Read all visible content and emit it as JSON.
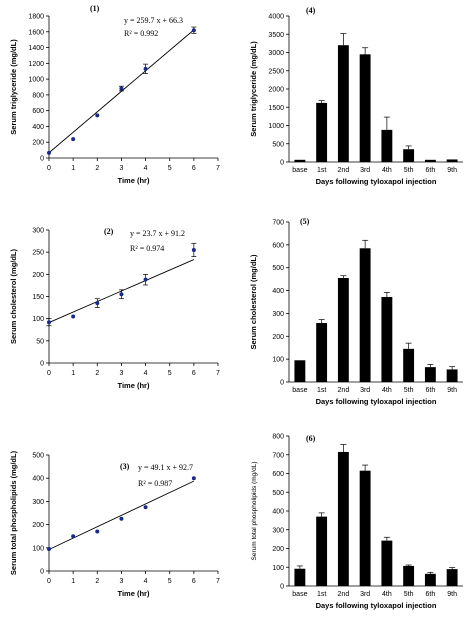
{
  "chart_data": [
    {
      "panel": "(1)",
      "type": "scatter",
      "xlabel": "Time (hr)",
      "ylabel": "Serum triglyceride (mg/dL)",
      "xlim": [
        0,
        7
      ],
      "ylim": [
        0,
        1800
      ],
      "xticks": [
        "0",
        "1",
        "2",
        "3",
        "4",
        "5",
        "6",
        "7"
      ],
      "yticks": [
        "0",
        "200",
        "400",
        "600",
        "800",
        "1000",
        "1200",
        "1400",
        "1600",
        "1800"
      ],
      "x": [
        0,
        1,
        2,
        3,
        4,
        6
      ],
      "y": [
        65,
        240,
        540,
        880,
        1130,
        1620
      ],
      "err": [
        0,
        0,
        0,
        30,
        60,
        40
      ],
      "fit": {
        "equation": "y = 259.7 x + 66.3",
        "r2": "R² = 0.992",
        "slope": 259.7,
        "intercept": 66.3
      }
    },
    {
      "panel": "(4)",
      "type": "bar",
      "xlabel": "Days following tyloxapol injection",
      "ylabel": "Serum triglyceride (mg/dL)",
      "ylim": [
        0,
        4000
      ],
      "yticks": [
        "0",
        "500",
        "1000",
        "1500",
        "2000",
        "2500",
        "3000",
        "3500",
        "4000"
      ],
      "categories": [
        "base",
        "1st",
        "2nd",
        "3rd",
        "4th",
        "5th",
        "6th",
        "9th"
      ],
      "values": [
        60,
        1620,
        3200,
        2950,
        880,
        350,
        60,
        70
      ],
      "err": [
        0,
        60,
        320,
        180,
        350,
        90,
        0,
        0
      ]
    },
    {
      "panel": "(2)",
      "type": "scatter",
      "xlabel": "Time (hr)",
      "ylabel": "Serum cholesterol (mg/dL)",
      "xlim": [
        0,
        7
      ],
      "ylim": [
        0,
        300
      ],
      "xticks": [
        "0",
        "1",
        "2",
        "3",
        "4",
        "5",
        "6",
        "7"
      ],
      "yticks": [
        "0",
        "50",
        "100",
        "150",
        "200",
        "250",
        "300"
      ],
      "x": [
        0,
        1,
        2,
        3,
        4,
        6
      ],
      "y": [
        92,
        105,
        135,
        155,
        188,
        255
      ],
      "err": [
        8,
        0,
        10,
        10,
        12,
        15
      ],
      "fit": {
        "equation": "y = 23.7 x + 91.2",
        "r2": "R² = 0.974",
        "slope": 23.7,
        "intercept": 91.2
      }
    },
    {
      "panel": "(5)",
      "type": "bar",
      "xlabel": "Days following tyloxapol injection",
      "ylabel": "Serum cholesterol (mg/dL)",
      "ylim": [
        0,
        700
      ],
      "yticks": [
        "0",
        "100",
        "200",
        "300",
        "400",
        "500",
        "600",
        "700"
      ],
      "categories": [
        "base",
        "1st",
        "2nd",
        "3rd",
        "4th",
        "5th",
        "6th",
        "9th"
      ],
      "values": [
        95,
        258,
        455,
        585,
        372,
        145,
        65,
        55
      ],
      "err": [
        0,
        15,
        10,
        35,
        20,
        25,
        12,
        12
      ]
    },
    {
      "panel": "(3)",
      "type": "scatter",
      "xlabel": "Time (hr)",
      "ylabel": "Serum total phospholipids (mg/dL)",
      "xlim": [
        0,
        7
      ],
      "ylim": [
        0,
        500
      ],
      "xticks": [
        "0",
        "1",
        "2",
        "3",
        "4",
        "5",
        "6",
        "7"
      ],
      "yticks": [
        "0",
        "100",
        "200",
        "300",
        "400",
        "500"
      ],
      "x": [
        0,
        1,
        2,
        3,
        4,
        6
      ],
      "y": [
        95,
        150,
        170,
        225,
        275,
        400
      ],
      "err": [
        0,
        0,
        0,
        0,
        0,
        0
      ],
      "fit": {
        "equation": "y = 49.1 x + 92.7",
        "r2": "R² = 0.987",
        "slope": 49.1,
        "intercept": 92.7
      }
    },
    {
      "panel": "(6)",
      "type": "bar",
      "xlabel": "Days following tyloxapol injection",
      "ylabel": "Serum total phospholipids (mg/dL)",
      "ylim": [
        0,
        800
      ],
      "yticks": [
        "0",
        "100",
        "200",
        "300",
        "400",
        "500",
        "600",
        "700",
        "800"
      ],
      "categories": [
        "base",
        "1st",
        "2nd",
        "3rd",
        "4th",
        "5th",
        "6th",
        "9th"
      ],
      "values": [
        92,
        370,
        715,
        615,
        242,
        107,
        65,
        90
      ],
      "err": [
        15,
        20,
        40,
        30,
        18,
        5,
        8,
        8
      ]
    }
  ]
}
